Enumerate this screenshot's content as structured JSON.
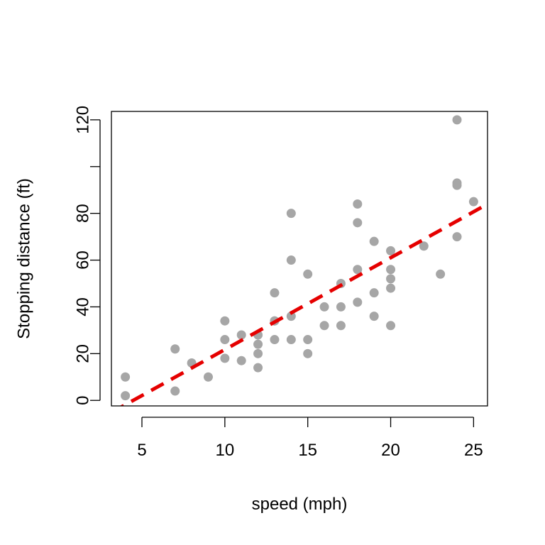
{
  "chart_data": {
    "type": "scatter",
    "title": "",
    "xlabel": "speed (mph)",
    "ylabel": "Stopping distance (ft)",
    "xlim": [
      3.16,
      25.84
    ],
    "ylim": [
      -2.36,
      123.6
    ],
    "xticks": [
      5,
      10,
      15,
      20,
      25
    ],
    "yticks": [
      0,
      20,
      40,
      60,
      80,
      100,
      120
    ],
    "ytick_labels": [
      "0",
      "20",
      "40",
      "60",
      "80",
      "",
      "120"
    ],
    "grid": false,
    "legend": "none",
    "colors": {
      "points": "#a6a6a6",
      "fit_line": "#e50000",
      "axis": "#000000"
    },
    "points": {
      "x": [
        4,
        4,
        7,
        7,
        8,
        9,
        10,
        10,
        10,
        11,
        11,
        12,
        12,
        12,
        12,
        13,
        13,
        13,
        13,
        14,
        14,
        14,
        14,
        15,
        15,
        15,
        16,
        16,
        17,
        17,
        17,
        18,
        18,
        18,
        18,
        19,
        19,
        19,
        20,
        20,
        20,
        20,
        20,
        22,
        23,
        24,
        24,
        24,
        24,
        25
      ],
      "y": [
        2,
        10,
        4,
        22,
        16,
        10,
        18,
        26,
        34,
        17,
        28,
        14,
        20,
        24,
        28,
        26,
        34,
        34,
        46,
        26,
        36,
        60,
        80,
        20,
        26,
        54,
        32,
        40,
        32,
        40,
        50,
        42,
        56,
        76,
        84,
        36,
        46,
        68,
        32,
        48,
        52,
        56,
        64,
        66,
        54,
        70,
        92,
        93,
        120,
        85
      ]
    },
    "fit_line": {
      "style": "dashed",
      "intercept": -17.58,
      "slope": 3.93
    }
  }
}
